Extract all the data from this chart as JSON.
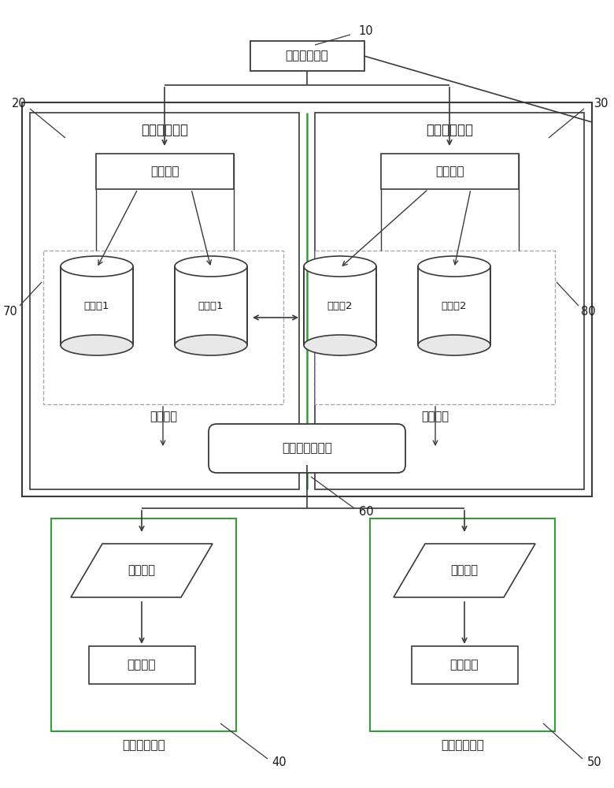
{
  "bg_color": "#ffffff",
  "line_color": "#3a3a3a",
  "green_line": "#3a9a3a",
  "dashed_color": "#aaaaaa",
  "label_10": "10",
  "label_20": "20",
  "label_30": "30",
  "label_40": "40",
  "label_50": "50",
  "label_60": "60",
  "label_70": "70",
  "label_80": "80",
  "text_yewufenpei": "业务分配模块",
  "text_zhuyewu": "主业务服务器",
  "text_beiyewu": "备业务服务器",
  "text_yewuxitong": "业务系统",
  "text_yonghu1": "用户库1",
  "text_yewuku1": "业务库1",
  "text_zhushujuku": "主数据库",
  "text_yewuku2": "业务库2",
  "text_yonghu2": "用户库2",
  "text_beishujuku": "备数据库",
  "text_shujukudaili": "数据库代理模块",
  "text_yuanchengrizhi": "远程日志",
  "text_jiance": "监测程序",
  "text_zhu_jiance": "主监测服务器",
  "text_bei_jiance": "备监测服务器"
}
